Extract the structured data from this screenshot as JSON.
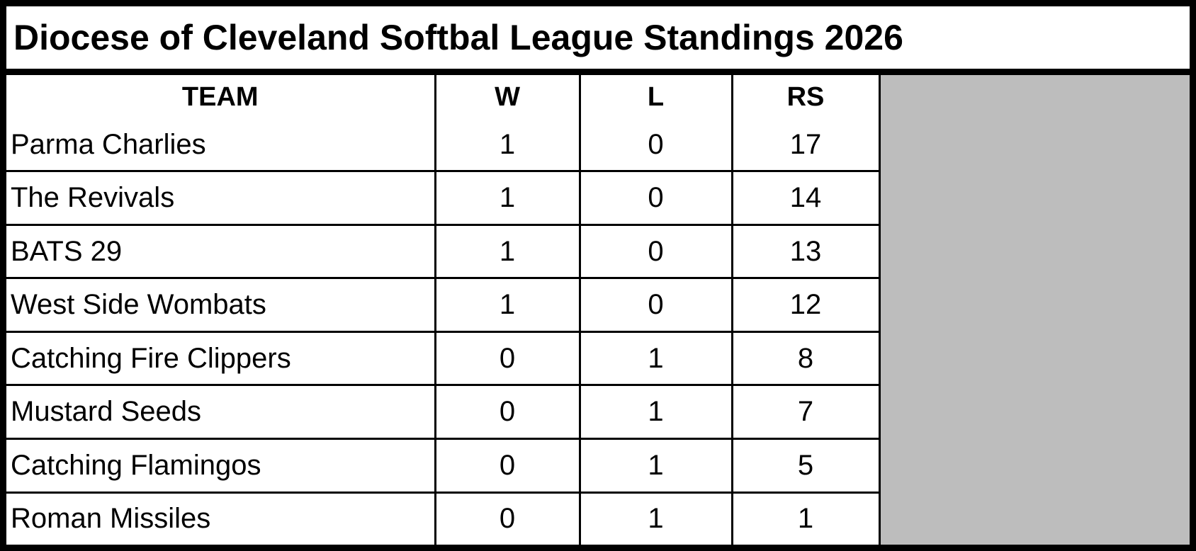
{
  "header": {
    "title": "Diocese of Cleveland Softbal League Standings 2026"
  },
  "table": {
    "columns": [
      "TEAM",
      "W",
      "L",
      "RS"
    ],
    "rows": [
      [
        "Parma Charlies",
        1,
        0,
        17
      ],
      [
        "The Revivals",
        1,
        0,
        14
      ],
      [
        "BATS 29",
        1,
        0,
        13
      ],
      [
        "West Side Wombats",
        1,
        0,
        12
      ],
      [
        "Catching Fire Clippers",
        0,
        1,
        8
      ],
      [
        "Mustard Seeds",
        0,
        1,
        7
      ],
      [
        "Catching Flamingos",
        0,
        1,
        5
      ],
      [
        "Roman Missiles",
        0,
        1,
        1
      ]
    ]
  }
}
